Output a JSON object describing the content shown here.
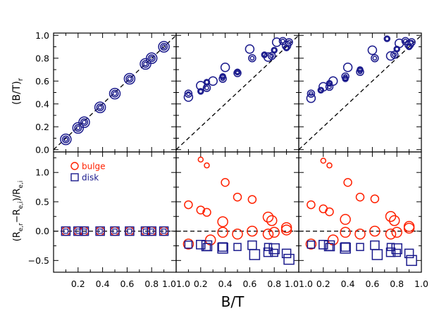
{
  "figure": {
    "xlabel": "B/T",
    "top_ylabel": "(B/T)",
    "top_ylabel_sub": "r",
    "bottom_ylabel_parts": [
      "(R",
      "e,r",
      "−R",
      "e,i",
      ")/R",
      "e,i"
    ]
  },
  "colors": {
    "bulge": "#ff2000",
    "disk": "#1a1a8c",
    "axes": "#000000"
  },
  "legend": {
    "bulge": "bulge",
    "disk": "disk",
    "placement": "top-left of lower-left panel"
  },
  "chart_data": [
    {
      "type": "scatter",
      "panel": "top-left",
      "xlim": [
        0,
        1
      ],
      "ylim": [
        -0.02,
        1.02
      ],
      "reference_line": "y = x",
      "xticks": [],
      "yticks": [
        "0.0",
        "0.2",
        "0.4",
        "0.6",
        "0.8",
        "1.0"
      ],
      "series": [
        {
          "x": [
            0.1,
            0.2,
            0.25,
            0.38,
            0.5,
            0.62,
            0.75,
            0.8,
            0.9
          ],
          "y": [
            0.09,
            0.19,
            0.24,
            0.37,
            0.49,
            0.62,
            0.75,
            0.8,
            0.9
          ]
        }
      ]
    },
    {
      "type": "scatter",
      "panel": "top-middle",
      "xlim": [
        0,
        1
      ],
      "ylim": [
        -0.02,
        1.02
      ],
      "reference_line": "y = x",
      "series": [
        {
          "x": [
            0.1,
            0.1,
            0.2,
            0.2,
            0.25,
            0.25,
            0.3,
            0.38,
            0.38,
            0.4,
            0.5,
            0.5,
            0.6,
            0.62,
            0.72,
            0.75,
            0.78,
            0.8,
            0.82,
            0.87,
            0.9,
            0.9,
            0.92
          ],
          "y": [
            0.46,
            0.49,
            0.51,
            0.56,
            0.54,
            0.59,
            0.6,
            0.62,
            0.64,
            0.72,
            0.67,
            0.68,
            0.88,
            0.8,
            0.83,
            0.81,
            0.82,
            0.87,
            0.94,
            0.95,
            0.89,
            0.91,
            0.94
          ]
        }
      ]
    },
    {
      "type": "scatter",
      "panel": "top-right",
      "xlim": [
        0,
        1
      ],
      "ylim": [
        -0.02,
        1.02
      ],
      "reference_line": "y = x",
      "series": [
        {
          "x": [
            0.1,
            0.1,
            0.18,
            0.2,
            0.25,
            0.25,
            0.28,
            0.38,
            0.38,
            0.4,
            0.5,
            0.5,
            0.6,
            0.62,
            0.72,
            0.75,
            0.78,
            0.8,
            0.82,
            0.87,
            0.9,
            0.9,
            0.92
          ],
          "y": [
            0.45,
            0.49,
            0.52,
            0.55,
            0.55,
            0.58,
            0.6,
            0.64,
            0.62,
            0.72,
            0.68,
            0.7,
            0.87,
            0.8,
            0.97,
            0.82,
            0.83,
            0.88,
            0.93,
            0.95,
            0.9,
            0.92,
            0.94
          ]
        }
      ]
    },
    {
      "type": "scatter",
      "panel": "bottom-left",
      "xlim": [
        0,
        1
      ],
      "ylim": [
        -0.7,
        1.35
      ],
      "reference_line": "y = 0",
      "xticks": [
        "0.2",
        "0.4",
        "0.6",
        "0.8",
        "1.0"
      ],
      "yticks": [
        "−0.5",
        "0.0",
        "0.5",
        "1.0"
      ],
      "series": [
        {
          "name": "bulge",
          "x": [
            0.1,
            0.2,
            0.25,
            0.38,
            0.5,
            0.62,
            0.75,
            0.8,
            0.9
          ],
          "y": [
            0,
            0,
            0,
            0,
            0,
            0,
            0,
            0,
            0
          ]
        },
        {
          "name": "disk",
          "x": [
            0.1,
            0.2,
            0.25,
            0.38,
            0.5,
            0.62,
            0.75,
            0.8,
            0.9
          ],
          "y": [
            0,
            0,
            0,
            0,
            0,
            0,
            0,
            0,
            0
          ]
        }
      ]
    },
    {
      "type": "scatter",
      "panel": "bottom-middle",
      "xlim": [
        0,
        1
      ],
      "ylim": [
        -0.7,
        1.35
      ],
      "reference_line": "y = 0",
      "xticks": [
        "1.0",
        "0.2",
        "0.4",
        "0.6",
        "0.8",
        "1.0"
      ],
      "series": [
        {
          "name": "bulge",
          "x": [
            0.1,
            0.1,
            0.2,
            0.2,
            0.25,
            0.25,
            0.28,
            0.38,
            0.38,
            0.4,
            0.5,
            0.5,
            0.62,
            0.62,
            0.75,
            0.75,
            0.78,
            0.8,
            0.9,
            0.9
          ],
          "y": [
            -0.22,
            0.45,
            1.22,
            0.36,
            1.12,
            0.32,
            -0.15,
            -0.02,
            0.16,
            0.83,
            -0.05,
            0.58,
            0.0,
            0.54,
            -0.05,
            0.24,
            0.18,
            -0.02,
            0.02,
            0.06
          ]
        },
        {
          "name": "disk",
          "x": [
            0.1,
            0.2,
            0.25,
            0.25,
            0.38,
            0.38,
            0.5,
            0.62,
            0.64,
            0.75,
            0.75,
            0.8,
            0.8,
            0.9,
            0.92
          ],
          "y": [
            -0.23,
            -0.23,
            -0.25,
            -0.27,
            -0.27,
            -0.29,
            -0.27,
            -0.24,
            -0.4,
            -0.27,
            -0.36,
            -0.3,
            -0.37,
            -0.38,
            -0.48
          ]
        }
      ]
    },
    {
      "type": "scatter",
      "panel": "bottom-right",
      "xlim": [
        0,
        1
      ],
      "ylim": [
        -0.7,
        1.35
      ],
      "reference_line": "y = 0",
      "xticks": [
        "1.0",
        "0.2",
        "0.4",
        "0.6",
        "0.8",
        "1.0"
      ],
      "series": [
        {
          "name": "bulge",
          "x": [
            0.1,
            0.1,
            0.2,
            0.2,
            0.25,
            0.25,
            0.28,
            0.38,
            0.38,
            0.4,
            0.5,
            0.5,
            0.62,
            0.62,
            0.75,
            0.75,
            0.78,
            0.8,
            0.9,
            0.9
          ],
          "y": [
            -0.22,
            0.45,
            1.2,
            0.38,
            1.12,
            0.33,
            -0.15,
            -0.02,
            0.2,
            0.83,
            -0.05,
            0.58,
            0.0,
            0.55,
            -0.05,
            0.25,
            0.18,
            -0.02,
            0.05,
            0.08
          ]
        },
        {
          "name": "disk",
          "x": [
            0.1,
            0.2,
            0.25,
            0.25,
            0.38,
            0.38,
            0.5,
            0.62,
            0.64,
            0.75,
            0.75,
            0.8,
            0.8,
            0.9,
            0.92
          ],
          "y": [
            -0.23,
            -0.23,
            -0.25,
            -0.27,
            -0.27,
            -0.29,
            -0.27,
            -0.24,
            -0.4,
            -0.27,
            -0.36,
            -0.3,
            -0.37,
            -0.38,
            -0.5
          ]
        }
      ]
    }
  ]
}
